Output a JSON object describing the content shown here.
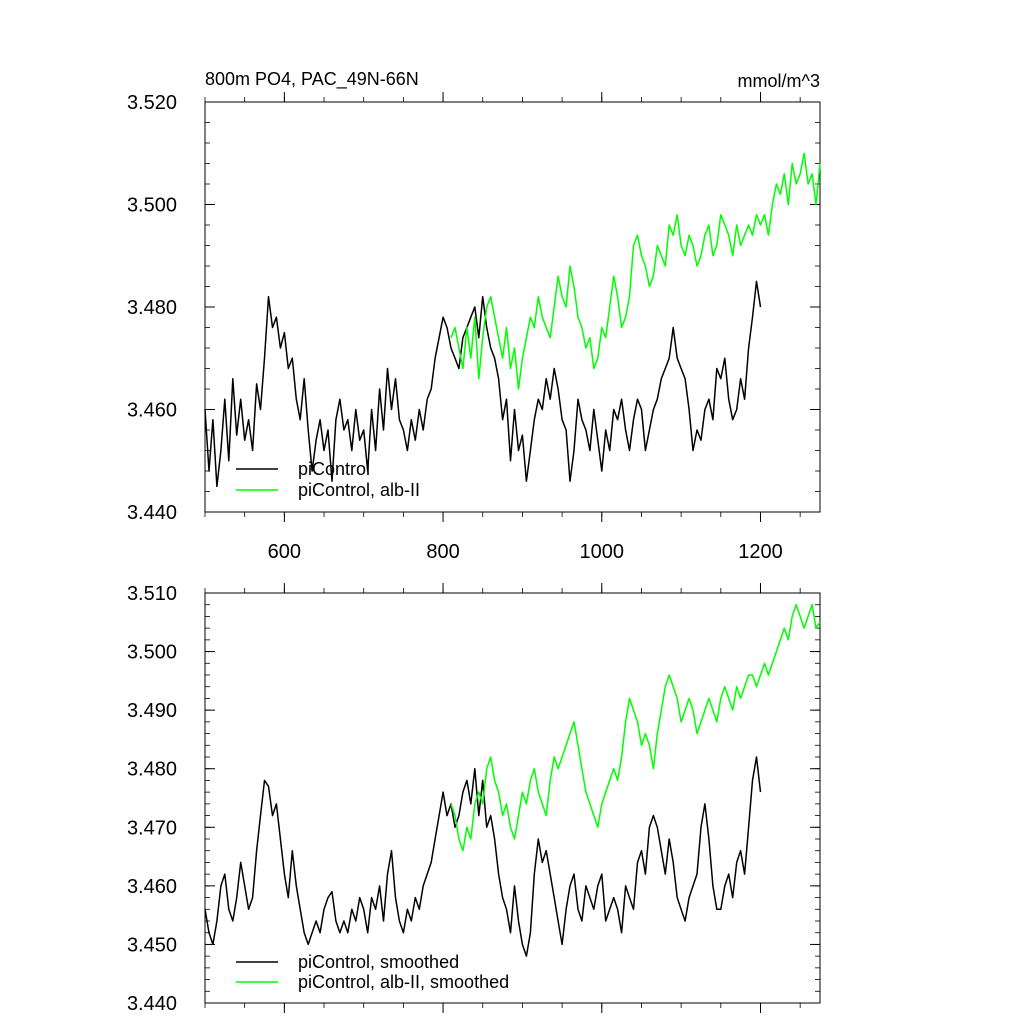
{
  "chart_data": [
    {
      "type": "line",
      "title_left": "800m PO4, PAC_49N-66N",
      "title_right": "mmol/m^3",
      "xlim": [
        500,
        1275
      ],
      "ylim": [
        3.44,
        3.52
      ],
      "xticks": [
        600,
        800,
        1000,
        1200
      ],
      "xtick_labels": [
        "600",
        "800",
        "1000",
        "1200"
      ],
      "yticks": [
        3.44,
        3.46,
        3.48,
        3.5,
        3.52
      ],
      "ytick_labels": [
        "3.440",
        "3.460",
        "3.480",
        "3.500",
        "3.520"
      ],
      "legend_position": "bottom-left",
      "series": [
        {
          "name": "piControl",
          "color": "#000000",
          "x": [
            500,
            505,
            510,
            515,
            520,
            525,
            530,
            535,
            540,
            545,
            550,
            555,
            560,
            565,
            570,
            575,
            580,
            585,
            590,
            595,
            600,
            605,
            610,
            615,
            620,
            625,
            630,
            635,
            640,
            645,
            650,
            655,
            660,
            665,
            670,
            675,
            680,
            685,
            690,
            695,
            700,
            705,
            710,
            715,
            720,
            725,
            730,
            735,
            740,
            745,
            750,
            755,
            760,
            765,
            770,
            775,
            780,
            785,
            790,
            795,
            800,
            805,
            810,
            815,
            820,
            825,
            830,
            835,
            840,
            845,
            850,
            855,
            860,
            865,
            870,
            875,
            880,
            885,
            890,
            895,
            900,
            905,
            910,
            915,
            920,
            925,
            930,
            935,
            940,
            945,
            950,
            955,
            960,
            965,
            970,
            975,
            980,
            985,
            990,
            995,
            1000,
            1005,
            1010,
            1015,
            1020,
            1025,
            1030,
            1035,
            1040,
            1045,
            1050,
            1055,
            1060,
            1065,
            1070,
            1075,
            1080,
            1085,
            1090,
            1095,
            1100,
            1105,
            1110,
            1115,
            1120,
            1125,
            1130,
            1135,
            1140,
            1145,
            1150,
            1155,
            1160,
            1165,
            1170,
            1175,
            1180,
            1185,
            1190,
            1195,
            1200
          ],
          "y": [
            3.46,
            3.448,
            3.458,
            3.445,
            3.452,
            3.462,
            3.45,
            3.466,
            3.455,
            3.462,
            3.454,
            3.458,
            3.452,
            3.465,
            3.46,
            3.47,
            3.482,
            3.476,
            3.478,
            3.472,
            3.475,
            3.468,
            3.47,
            3.462,
            3.458,
            3.466,
            3.456,
            3.448,
            3.454,
            3.458,
            3.452,
            3.456,
            3.446,
            3.458,
            3.462,
            3.456,
            3.458,
            3.452,
            3.46,
            3.454,
            3.456,
            3.448,
            3.46,
            3.452,
            3.464,
            3.456,
            3.468,
            3.46,
            3.466,
            3.458,
            3.456,
            3.452,
            3.458,
            3.454,
            3.46,
            3.456,
            3.462,
            3.464,
            3.47,
            3.474,
            3.478,
            3.476,
            3.472,
            3.47,
            3.468,
            3.474,
            3.476,
            3.478,
            3.48,
            3.474,
            3.482,
            3.476,
            3.472,
            3.47,
            3.466,
            3.458,
            3.462,
            3.45,
            3.46,
            3.452,
            3.455,
            3.446,
            3.452,
            3.458,
            3.462,
            3.46,
            3.466,
            3.462,
            3.468,
            3.464,
            3.458,
            3.456,
            3.446,
            3.452,
            3.462,
            3.458,
            3.456,
            3.452,
            3.46,
            3.454,
            3.448,
            3.456,
            3.452,
            3.46,
            3.458,
            3.462,
            3.456,
            3.452,
            3.458,
            3.462,
            3.46,
            3.452,
            3.456,
            3.46,
            3.462,
            3.466,
            3.468,
            3.47,
            3.476,
            3.47,
            3.468,
            3.466,
            3.46,
            3.452,
            3.456,
            3.454,
            3.46,
            3.462,
            3.458,
            3.468,
            3.466,
            3.47,
            3.462,
            3.458,
            3.46,
            3.466,
            3.462,
            3.472,
            3.478,
            3.485,
            3.48
          ]
        },
        {
          "name": "piControl, alb-II",
          "color": "#00ff00",
          "x": [
            810,
            815,
            820,
            825,
            830,
            835,
            840,
            845,
            850,
            855,
            860,
            865,
            870,
            875,
            880,
            885,
            890,
            895,
            900,
            905,
            910,
            915,
            920,
            925,
            930,
            935,
            940,
            945,
            950,
            955,
            960,
            965,
            970,
            975,
            980,
            985,
            990,
            995,
            1000,
            1005,
            1010,
            1015,
            1020,
            1025,
            1030,
            1035,
            1040,
            1045,
            1050,
            1055,
            1060,
            1065,
            1070,
            1075,
            1080,
            1085,
            1090,
            1095,
            1100,
            1105,
            1110,
            1115,
            1120,
            1125,
            1130,
            1135,
            1140,
            1145,
            1150,
            1155,
            1160,
            1165,
            1170,
            1175,
            1180,
            1185,
            1190,
            1195,
            1200,
            1205,
            1210,
            1215,
            1220,
            1225,
            1230,
            1235,
            1240,
            1245,
            1250,
            1255,
            1260,
            1265,
            1270,
            1275
          ],
          "y": [
            3.474,
            3.476,
            3.472,
            3.468,
            3.476,
            3.47,
            3.478,
            3.466,
            3.474,
            3.48,
            3.482,
            3.478,
            3.474,
            3.47,
            3.476,
            3.468,
            3.472,
            3.464,
            3.47,
            3.474,
            3.478,
            3.476,
            3.482,
            3.478,
            3.476,
            3.474,
            3.48,
            3.486,
            3.482,
            3.48,
            3.488,
            3.484,
            3.478,
            3.476,
            3.472,
            3.474,
            3.468,
            3.47,
            3.476,
            3.474,
            3.48,
            3.486,
            3.482,
            3.476,
            3.478,
            3.482,
            3.492,
            3.494,
            3.49,
            3.488,
            3.484,
            3.486,
            3.492,
            3.49,
            3.488,
            3.496,
            3.494,
            3.498,
            3.492,
            3.49,
            3.494,
            3.492,
            3.488,
            3.49,
            3.494,
            3.496,
            3.49,
            3.492,
            3.498,
            3.496,
            3.494,
            3.49,
            3.496,
            3.492,
            3.494,
            3.496,
            3.494,
            3.498,
            3.496,
            3.498,
            3.494,
            3.5,
            3.504,
            3.502,
            3.506,
            3.5,
            3.508,
            3.504,
            3.506,
            3.51,
            3.504,
            3.506,
            3.5,
            3.508
          ]
        }
      ]
    },
    {
      "type": "line",
      "xlim": [
        500,
        1275
      ],
      "ylim": [
        3.44,
        3.51
      ],
      "xticks": [
        600,
        800,
        1000,
        1200
      ],
      "yticks": [
        3.44,
        3.45,
        3.46,
        3.47,
        3.48,
        3.49,
        3.5,
        3.51
      ],
      "ytick_labels": [
        "3.440",
        "3.450",
        "3.460",
        "3.470",
        "3.480",
        "3.490",
        "3.500",
        "3.510"
      ],
      "legend_position": "bottom-left",
      "series": [
        {
          "name": "piControl, smoothed",
          "color": "#000000",
          "x": [
            500,
            505,
            510,
            515,
            520,
            525,
            530,
            535,
            540,
            545,
            550,
            555,
            560,
            565,
            570,
            575,
            580,
            585,
            590,
            595,
            600,
            605,
            610,
            615,
            620,
            625,
            630,
            635,
            640,
            645,
            650,
            655,
            660,
            665,
            670,
            675,
            680,
            685,
            690,
            695,
            700,
            705,
            710,
            715,
            720,
            725,
            730,
            735,
            740,
            745,
            750,
            755,
            760,
            765,
            770,
            775,
            780,
            785,
            790,
            795,
            800,
            805,
            810,
            815,
            820,
            825,
            830,
            835,
            840,
            845,
            850,
            855,
            860,
            865,
            870,
            875,
            880,
            885,
            890,
            895,
            900,
            905,
            910,
            915,
            920,
            925,
            930,
            935,
            940,
            945,
            950,
            955,
            960,
            965,
            970,
            975,
            980,
            985,
            990,
            995,
            1000,
            1005,
            1010,
            1015,
            1020,
            1025,
            1030,
            1035,
            1040,
            1045,
            1050,
            1055,
            1060,
            1065,
            1070,
            1075,
            1080,
            1085,
            1090,
            1095,
            1100,
            1105,
            1110,
            1115,
            1120,
            1125,
            1130,
            1135,
            1140,
            1145,
            1150,
            1155,
            1160,
            1165,
            1170,
            1175,
            1180,
            1185,
            1190,
            1195,
            1200
          ],
          "y": [
            3.456,
            3.452,
            3.45,
            3.454,
            3.46,
            3.462,
            3.456,
            3.454,
            3.458,
            3.464,
            3.46,
            3.456,
            3.458,
            3.466,
            3.472,
            3.478,
            3.477,
            3.472,
            3.474,
            3.468,
            3.462,
            3.458,
            3.466,
            3.46,
            3.456,
            3.452,
            3.45,
            3.452,
            3.454,
            3.452,
            3.456,
            3.458,
            3.459,
            3.454,
            3.452,
            3.454,
            3.452,
            3.456,
            3.454,
            3.458,
            3.456,
            3.452,
            3.458,
            3.456,
            3.46,
            3.454,
            3.462,
            3.466,
            3.458,
            3.454,
            3.452,
            3.456,
            3.454,
            3.458,
            3.456,
            3.46,
            3.462,
            3.464,
            3.468,
            3.472,
            3.476,
            3.472,
            3.474,
            3.47,
            3.472,
            3.476,
            3.478,
            3.474,
            3.48,
            3.472,
            3.478,
            3.47,
            3.472,
            3.468,
            3.462,
            3.458,
            3.456,
            3.452,
            3.46,
            3.454,
            3.45,
            3.448,
            3.452,
            3.462,
            3.468,
            3.464,
            3.466,
            3.462,
            3.458,
            3.454,
            3.45,
            3.456,
            3.46,
            3.462,
            3.456,
            3.454,
            3.46,
            3.458,
            3.456,
            3.46,
            3.462,
            3.454,
            3.456,
            3.458,
            3.456,
            3.452,
            3.46,
            3.458,
            3.456,
            3.464,
            3.466,
            3.462,
            3.47,
            3.472,
            3.47,
            3.466,
            3.462,
            3.468,
            3.464,
            3.458,
            3.456,
            3.454,
            3.458,
            3.46,
            3.462,
            3.47,
            3.474,
            3.468,
            3.46,
            3.456,
            3.456,
            3.46,
            3.462,
            3.458,
            3.464,
            3.466,
            3.462,
            3.47,
            3.478,
            3.482,
            3.476
          ]
        },
        {
          "name": "piControl, alb-II, smoothed",
          "color": "#00ff00",
          "x": [
            810,
            815,
            820,
            825,
            830,
            835,
            840,
            845,
            850,
            855,
            860,
            865,
            870,
            875,
            880,
            885,
            890,
            895,
            900,
            905,
            910,
            915,
            920,
            925,
            930,
            935,
            940,
            945,
            950,
            955,
            960,
            965,
            970,
            975,
            980,
            985,
            990,
            995,
            1000,
            1005,
            1010,
            1015,
            1020,
            1025,
            1030,
            1035,
            1040,
            1045,
            1050,
            1055,
            1060,
            1065,
            1070,
            1075,
            1080,
            1085,
            1090,
            1095,
            1100,
            1105,
            1110,
            1115,
            1120,
            1125,
            1130,
            1135,
            1140,
            1145,
            1150,
            1155,
            1160,
            1165,
            1170,
            1175,
            1180,
            1185,
            1190,
            1195,
            1200,
            1205,
            1210,
            1215,
            1220,
            1225,
            1230,
            1235,
            1240,
            1245,
            1250,
            1255,
            1260,
            1265,
            1270,
            1275
          ],
          "y": [
            3.474,
            3.472,
            3.468,
            3.466,
            3.47,
            3.468,
            3.474,
            3.476,
            3.474,
            3.48,
            3.482,
            3.478,
            3.476,
            3.472,
            3.474,
            3.47,
            3.468,
            3.472,
            3.476,
            3.474,
            3.478,
            3.48,
            3.476,
            3.474,
            3.472,
            3.478,
            3.482,
            3.48,
            3.482,
            3.484,
            3.486,
            3.488,
            3.484,
            3.48,
            3.476,
            3.474,
            3.472,
            3.47,
            3.474,
            3.476,
            3.478,
            3.48,
            3.478,
            3.482,
            3.488,
            3.492,
            3.49,
            3.488,
            3.484,
            3.486,
            3.484,
            3.48,
            3.486,
            3.49,
            3.494,
            3.496,
            3.494,
            3.492,
            3.488,
            3.49,
            3.492,
            3.49,
            3.486,
            3.488,
            3.49,
            3.492,
            3.49,
            3.488,
            3.492,
            3.494,
            3.492,
            3.49,
            3.494,
            3.492,
            3.494,
            3.496,
            3.496,
            3.494,
            3.496,
            3.498,
            3.496,
            3.498,
            3.5,
            3.502,
            3.504,
            3.502,
            3.506,
            3.508,
            3.506,
            3.504,
            3.506,
            3.508,
            3.504,
            3.505
          ]
        }
      ]
    }
  ]
}
